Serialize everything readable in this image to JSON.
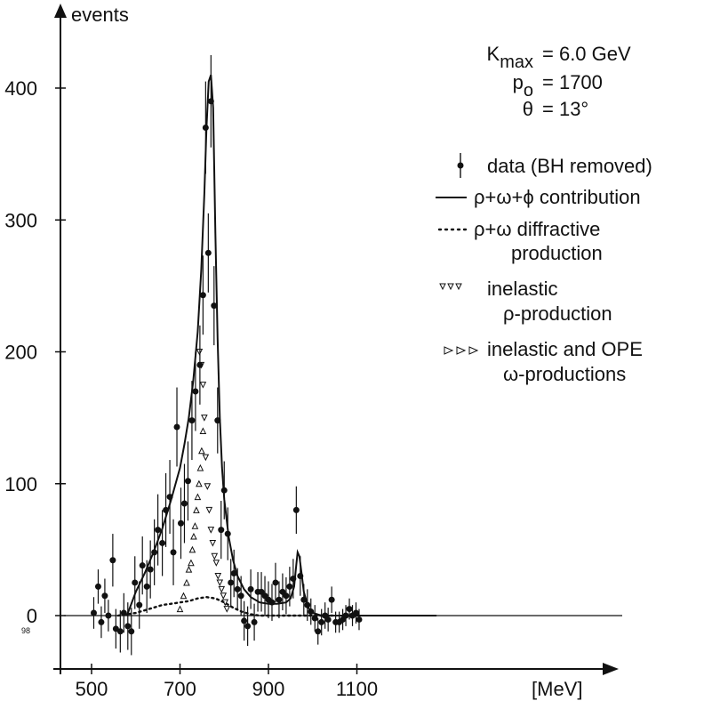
{
  "chart_data": {
    "type": "scatter",
    "xlabel": "[MeV]",
    "ylabel": "events",
    "xlim": [
      470,
      1300
    ],
    "ylim": [
      -50,
      430
    ],
    "x_ticks": [
      500,
      700,
      900,
      1100
    ],
    "y_ticks": [
      0,
      100,
      200,
      300,
      400
    ],
    "zero_sublabel": "98",
    "grid": false,
    "legend_position": "top-right",
    "params": [
      {
        "lhs": "K",
        "sub": "max",
        "rhs": "= 6.0 GeV"
      },
      {
        "lhs": "p",
        "sub": "o",
        "rhs": "= 1700"
      },
      {
        "lhs": "θ",
        "sub": "",
        "rhs": "= 13°"
      }
    ],
    "legend": [
      {
        "style": "errorbar",
        "label": "data (BH removed)"
      },
      {
        "style": "solid",
        "label": "ρ+ω+ϕ contribution"
      },
      {
        "style": "dotted",
        "label": "ρ+ω diffractive",
        "label2": "production"
      },
      {
        "style": "down-triangles",
        "label": "inelastic",
        "label2": "ρ-production"
      },
      {
        "style": "up-triangles",
        "label": "inelastic and OPE",
        "label2": "ω-productions"
      }
    ],
    "series": [
      {
        "name": "data (BH removed)",
        "style": "errorbar",
        "points": [
          {
            "x": 505,
            "y": 2,
            "err": 12
          },
          {
            "x": 515,
            "y": 22,
            "err": 13
          },
          {
            "x": 522,
            "y": -5,
            "err": 12
          },
          {
            "x": 530,
            "y": 15,
            "err": 13
          },
          {
            "x": 538,
            "y": 0,
            "err": 12
          },
          {
            "x": 548,
            "y": 42,
            "err": 20
          },
          {
            "x": 555,
            "y": -10,
            "err": 15
          },
          {
            "x": 565,
            "y": -12,
            "err": 16
          },
          {
            "x": 573,
            "y": 2,
            "err": 15
          },
          {
            "x": 582,
            "y": -8,
            "err": 18
          },
          {
            "x": 590,
            "y": -12,
            "err": 18
          },
          {
            "x": 598,
            "y": 25,
            "err": 20
          },
          {
            "x": 608,
            "y": 8,
            "err": 18
          },
          {
            "x": 615,
            "y": 38,
            "err": 22
          },
          {
            "x": 625,
            "y": 22,
            "err": 20
          },
          {
            "x": 633,
            "y": 35,
            "err": 22
          },
          {
            "x": 642,
            "y": 48,
            "err": 25
          },
          {
            "x": 650,
            "y": 65,
            "err": 27
          },
          {
            "x": 660,
            "y": 55,
            "err": 25
          },
          {
            "x": 668,
            "y": 80,
            "err": 28
          },
          {
            "x": 677,
            "y": 90,
            "err": 28
          },
          {
            "x": 685,
            "y": 48,
            "err": 25
          },
          {
            "x": 693,
            "y": 143,
            "err": 30
          },
          {
            "x": 702,
            "y": 70,
            "err": 27
          },
          {
            "x": 710,
            "y": 85,
            "err": 30
          },
          {
            "x": 718,
            "y": 102,
            "err": 30
          },
          {
            "x": 727,
            "y": 148,
            "err": 30
          },
          {
            "x": 735,
            "y": 170,
            "err": 30
          },
          {
            "x": 745,
            "y": 190,
            "err": 30
          },
          {
            "x": 752,
            "y": 243,
            "err": 30
          },
          {
            "x": 758,
            "y": 370,
            "err": 35
          },
          {
            "x": 764,
            "y": 275,
            "err": 30
          },
          {
            "x": 770,
            "y": 390,
            "err": 35
          },
          {
            "x": 777,
            "y": 235,
            "err": 30
          },
          {
            "x": 785,
            "y": 148,
            "err": 25
          },
          {
            "x": 793,
            "y": 65,
            "err": 22
          },
          {
            "x": 800,
            "y": 95,
            "err": 22
          },
          {
            "x": 808,
            "y": 62,
            "err": 20
          },
          {
            "x": 815,
            "y": 25,
            "err": 18
          },
          {
            "x": 822,
            "y": 32,
            "err": 18
          },
          {
            "x": 830,
            "y": 20,
            "err": 16
          },
          {
            "x": 838,
            "y": 15,
            "err": 15
          },
          {
            "x": 845,
            "y": -4,
            "err": 15
          },
          {
            "x": 853,
            "y": -8,
            "err": 15
          },
          {
            "x": 860,
            "y": 20,
            "err": 15
          },
          {
            "x": 868,
            "y": -5,
            "err": 14
          },
          {
            "x": 876,
            "y": 18,
            "err": 15
          },
          {
            "x": 884,
            "y": 18,
            "err": 15
          },
          {
            "x": 892,
            "y": 15,
            "err": 15
          },
          {
            "x": 900,
            "y": 12,
            "err": 14
          },
          {
            "x": 908,
            "y": 10,
            "err": 14
          },
          {
            "x": 916,
            "y": 25,
            "err": 15
          },
          {
            "x": 924,
            "y": 12,
            "err": 14
          },
          {
            "x": 932,
            "y": 18,
            "err": 14
          },
          {
            "x": 940,
            "y": 15,
            "err": 14
          },
          {
            "x": 948,
            "y": 22,
            "err": 15
          },
          {
            "x": 956,
            "y": 28,
            "err": 15
          },
          {
            "x": 963,
            "y": 80,
            "err": 18
          },
          {
            "x": 972,
            "y": 30,
            "err": 15
          },
          {
            "x": 980,
            "y": 12,
            "err": 12
          },
          {
            "x": 988,
            "y": 8,
            "err": 12
          },
          {
            "x": 996,
            "y": 3,
            "err": 10
          },
          {
            "x": 1005,
            "y": -2,
            "err": 10
          },
          {
            "x": 1012,
            "y": -12,
            "err": 10
          },
          {
            "x": 1020,
            "y": -5,
            "err": 10
          },
          {
            "x": 1028,
            "y": 0,
            "err": 10
          },
          {
            "x": 1035,
            "y": -3,
            "err": 9
          },
          {
            "x": 1043,
            "y": 12,
            "err": 10
          },
          {
            "x": 1052,
            "y": -5,
            "err": 8
          },
          {
            "x": 1060,
            "y": -5,
            "err": 8
          },
          {
            "x": 1068,
            "y": -3,
            "err": 8
          },
          {
            "x": 1075,
            "y": 0,
            "err": 8
          },
          {
            "x": 1083,
            "y": 5,
            "err": 8
          },
          {
            "x": 1090,
            "y": 0,
            "err": 8
          },
          {
            "x": 1098,
            "y": 2,
            "err": 8
          },
          {
            "x": 1105,
            "y": -3,
            "err": 8
          }
        ]
      },
      {
        "name": "ρ+ω+ϕ contribution",
        "style": "solid",
        "x": [
          580,
          600,
          620,
          640,
          660,
          680,
          700,
          710,
          720,
          730,
          740,
          748,
          755,
          760,
          765,
          770,
          775,
          780,
          785,
          790,
          795,
          800,
          810,
          820,
          830,
          845,
          860,
          880,
          900,
          920,
          940,
          950,
          958,
          962,
          966,
          970,
          975,
          980,
          990,
          1000,
          1020,
          1050,
          1100,
          1150,
          1200,
          1280
        ],
        "y": [
          0,
          18,
          32,
          48,
          66,
          88,
          112,
          130,
          150,
          178,
          215,
          262,
          320,
          370,
          405,
          410,
          385,
          290,
          210,
          150,
          112,
          88,
          60,
          42,
          30,
          20,
          14,
          10,
          9,
          9,
          10,
          13,
          22,
          35,
          48,
          45,
          32,
          18,
          6,
          2,
          0,
          0,
          0,
          0,
          0,
          0
        ]
      },
      {
        "name": "ρ+ω diffractive production",
        "style": "dotted",
        "x": [
          560,
          580,
          600,
          620,
          640,
          660,
          680,
          700,
          720,
          740,
          760,
          780,
          800,
          820,
          840,
          860,
          880,
          900,
          920,
          940,
          960,
          980,
          1000,
          1020,
          1050
        ],
        "y": [
          0,
          1,
          2,
          4,
          6,
          8,
          9,
          10,
          11,
          13,
          14,
          13,
          10,
          6,
          3,
          1,
          0,
          0,
          0,
          0,
          0,
          0,
          0,
          0,
          0
        ]
      },
      {
        "name": "inelastic ρ-production",
        "style": "down-triangles",
        "x": [
          744,
          748,
          752,
          755,
          758,
          762,
          766,
          770,
          774,
          778,
          782,
          786,
          790,
          794,
          798,
          802,
          806
        ],
        "y": [
          200,
          190,
          175,
          150,
          120,
          98,
          80,
          65,
          55,
          45,
          40,
          30,
          25,
          20,
          15,
          10,
          5
        ]
      },
      {
        "name": "inelastic and OPE ω-productions",
        "style": "up-triangles",
        "x": [
          700,
          708,
          715,
          720,
          725,
          728,
          731,
          734,
          737,
          740,
          743,
          746,
          749,
          752
        ],
        "y": [
          5,
          15,
          25,
          35,
          40,
          50,
          60,
          68,
          80,
          90,
          100,
          112,
          125,
          140
        ]
      }
    ]
  }
}
